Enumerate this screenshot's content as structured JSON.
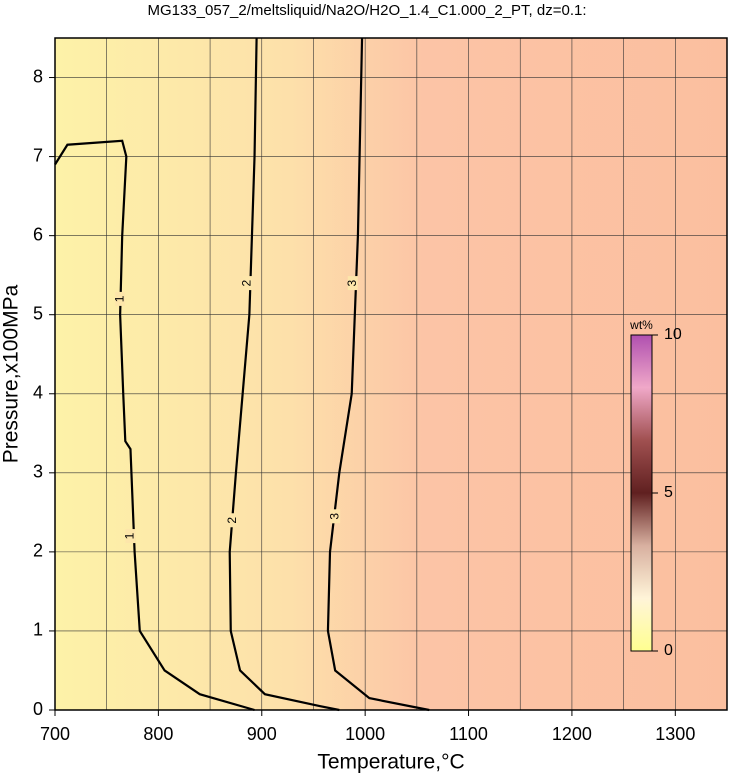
{
  "chart_data": {
    "type": "contour",
    "title": "MG133_057_2/meltsliquid/Na2O/H2O_1.4_C1.000_2_PT, dz=0.1:",
    "x_label": "Temperature,°C",
    "y_label": "Pressure,x100MPa",
    "xlim": [
      700,
      1350
    ],
    "ylim": [
      0,
      8.5
    ],
    "xticks": [
      700,
      800,
      900,
      1000,
      1100,
      1200,
      1300
    ],
    "xminor": [
      750,
      850,
      950,
      1050,
      1150,
      1250
    ],
    "yticks": [
      0,
      1,
      2,
      3,
      4,
      5,
      6,
      7,
      8
    ],
    "grid": true,
    "series": [
      {
        "level": 1,
        "color": "#000000",
        "x": [
          700,
          712,
          765,
          769,
          765,
          763,
          766,
          768,
          773,
          777,
          782,
          806,
          840,
          893
        ],
        "y": [
          6.9,
          7.15,
          7.2,
          7.0,
          6.0,
          5.0,
          4.0,
          3.4,
          3.3,
          2.0,
          1.0,
          0.5,
          0.2,
          0
        ]
      },
      {
        "level": 2,
        "color": "#000000",
        "x": [
          895,
          893,
          888,
          875,
          869,
          870,
          879,
          903,
          956,
          975
        ],
        "y": [
          8.5,
          7,
          5,
          3,
          2,
          1,
          0.5,
          0.2,
          0.05,
          0
        ]
      },
      {
        "level": 3,
        "color": "#000000",
        "x": [
          997,
          993,
          987,
          975,
          966,
          964,
          971,
          1004,
          1062
        ],
        "y": [
          8.5,
          6,
          4,
          3,
          2,
          1,
          0.5,
          0.15,
          0
        ]
      }
    ],
    "contour_labels": [
      {
        "series": 0,
        "x": 763,
        "y": 5.2
      },
      {
        "series": 0,
        "x": 773,
        "y": 2.2
      },
      {
        "series": 1,
        "x": 886,
        "y": 5.4
      },
      {
        "series": 1,
        "x": 872,
        "y": 2.4
      },
      {
        "series": 2,
        "x": 988,
        "y": 5.4
      },
      {
        "series": 2,
        "x": 971,
        "y": 2.45
      }
    ],
    "colorbar": {
      "label": "wt%",
      "lim": [
        0,
        10
      ],
      "ticks": [
        0,
        5,
        10
      ],
      "colors": [
        "#ffff90",
        "#fff4d8",
        "#d8b0a0",
        "#602020",
        "#a05050",
        "#f0a8c8",
        "#b050b0"
      ]
    }
  }
}
